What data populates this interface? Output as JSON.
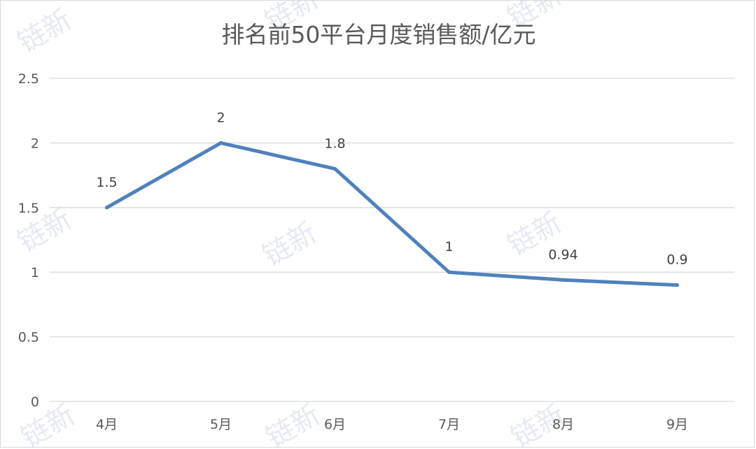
{
  "chart_data": {
    "type": "line",
    "title": "排名前50平台月度销售额/亿元",
    "categories": [
      "4月",
      "5月",
      "6月",
      "7月",
      "8月",
      "9月"
    ],
    "series": [
      {
        "values": [
          1.5,
          2,
          1.8,
          1,
          0.94,
          0.9
        ],
        "color": "#4f81bd"
      }
    ],
    "data_labels": [
      "1.5",
      "2",
      "1.8",
      "1",
      "0.94",
      "0.9"
    ],
    "y_ticks": [
      0,
      0.5,
      1,
      1.5,
      2,
      2.5
    ],
    "y_tick_labels": [
      "0",
      "0.5",
      "1",
      "1.5",
      "2",
      "2.5"
    ],
    "ylim": [
      0,
      2.5
    ],
    "xlabel": "",
    "ylabel": "",
    "grid": true,
    "legend": "none"
  },
  "watermark": "链新"
}
